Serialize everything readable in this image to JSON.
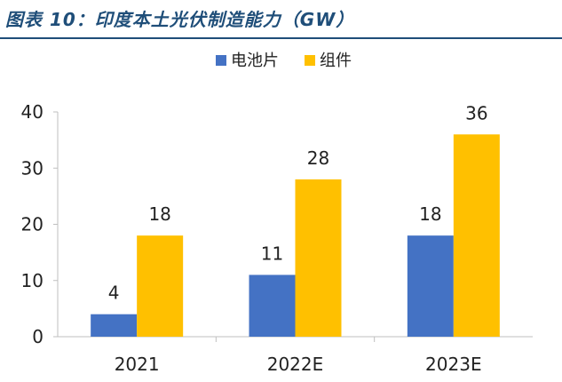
{
  "header": {
    "title": "图表 10：印度本土光伏制造能力（GW）"
  },
  "colors": {
    "series_1": "#4472c4",
    "series_2": "#ffc000",
    "title": "#1f4e79",
    "axis": "#bfbfbf",
    "text": "#222222"
  },
  "chart_data": {
    "type": "bar",
    "categories": [
      "2021",
      "2022E",
      "2023E"
    ],
    "series": [
      {
        "name": "电池片",
        "values": [
          4,
          11,
          18
        ]
      },
      {
        "name": "组件",
        "values": [
          18,
          28,
          36
        ]
      }
    ],
    "ylim": [
      0,
      40
    ],
    "yticks": [
      0,
      10,
      20,
      30,
      40
    ],
    "grid": false,
    "legend": "top-center"
  }
}
